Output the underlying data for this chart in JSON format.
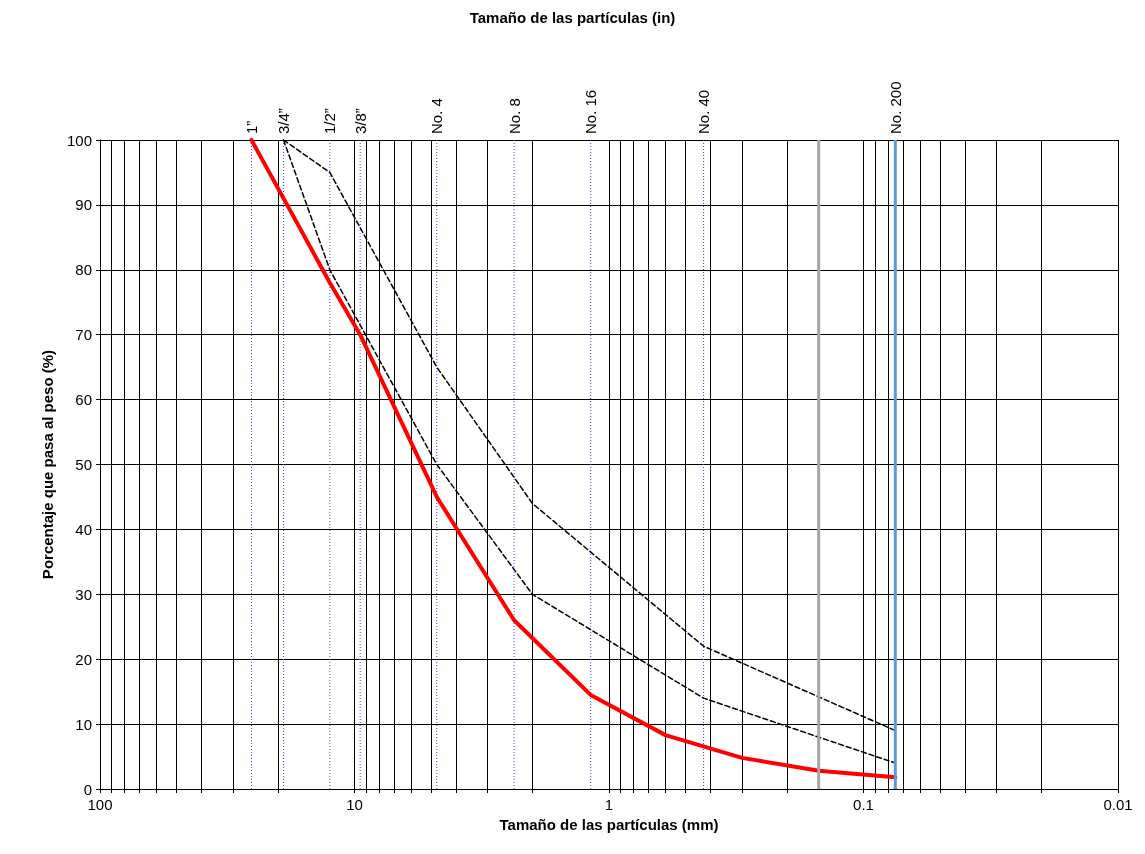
{
  "chart_data": {
    "type": "line",
    "xlabel": "Tamaño de las partículas (mm)",
    "ylabel": "Porcentaje que pasa al peso (%)",
    "title": "Tamaño de las partículas (in)",
    "log": "x",
    "xlim": [
      100,
      0.01
    ],
    "ylim": [
      0,
      100
    ],
    "xticks": [
      100,
      {
        "value": 90,
        "label": null
      },
      {
        "value": 80,
        "label": null
      },
      {
        "value": 70,
        "label": null
      },
      {
        "value": 60,
        "label": null
      },
      {
        "value": 50,
        "label": null
      },
      {
        "value": 40,
        "label": null
      },
      {
        "value": 30,
        "label": null
      },
      {
        "value": 20,
        "label": null
      },
      10,
      {
        "value": 9,
        "label": null
      },
      {
        "value": 8,
        "label": null
      },
      {
        "value": 7,
        "label": null
      },
      {
        "value": 6,
        "label": null
      },
      {
        "value": 5,
        "label": null
      },
      {
        "value": 4,
        "label": null
      },
      {
        "value": 3,
        "label": null
      },
      {
        "value": 2,
        "label": null
      },
      1,
      {
        "value": 0.9,
        "label": null
      },
      {
        "value": 0.8,
        "label": null
      },
      {
        "value": 0.7,
        "label": null
      },
      {
        "value": 0.6,
        "label": null
      },
      {
        "value": 0.5,
        "label": null
      },
      {
        "value": 0.4,
        "label": null
      },
      {
        "value": 0.3,
        "label": null
      },
      {
        "value": 0.2,
        "label": null
      },
      0.1,
      {
        "value": 0.09,
        "label": null
      },
      {
        "value": 0.08,
        "label": null
      },
      {
        "value": 0.07,
        "label": null
      },
      {
        "value": 0.06,
        "label": null
      },
      {
        "value": 0.05,
        "label": null
      },
      {
        "value": 0.04,
        "label": null
      },
      {
        "value": 0.03,
        "label": null
      },
      {
        "value": 0.02,
        "label": null
      },
      0.01
    ],
    "yticks": [
      0,
      10,
      20,
      30,
      40,
      50,
      60,
      70,
      80,
      90,
      100
    ],
    "grid": true,
    "marker": "none",
    "ref_lines": [
      {
        "axis": "x",
        "value": 25.4,
        "label": "1”",
        "color": "#4040ff",
        "line_style": "dotted"
      },
      {
        "axis": "x",
        "value": 19,
        "label": "3/4”",
        "color": "#4040ff",
        "line_style": "dotted"
      },
      {
        "axis": "x",
        "value": 12.5,
        "label": "1/2”",
        "color": "#4040ff",
        "line_style": "dotted"
      },
      {
        "axis": "x",
        "value": 9.5,
        "label": "3/8”",
        "color": "#4040ff",
        "line_style": "dotted"
      },
      {
        "axis": "x",
        "value": 4.75,
        "label": "No. 4",
        "color": "#4040ff",
        "line_style": "dotted"
      },
      {
        "axis": "x",
        "value": 2.36,
        "label": "No. 8",
        "color": "#4040ff",
        "line_style": "dotted"
      },
      {
        "axis": "x",
        "value": 1.18,
        "label": "No. 16",
        "color": "#4040ff",
        "line_style": "dotted"
      },
      {
        "axis": "x",
        "value": 0.425,
        "label": "No. 40",
        "color": "#4040ff",
        "line_style": "dotted"
      },
      {
        "axis": "x",
        "value": 0.15,
        "color": "#a6a6a6",
        "line_style": "solid"
      },
      {
        "axis": "x",
        "value": 0.075,
        "label": "No. 200",
        "color": "#5b9bd5",
        "line_style": "solid"
      }
    ],
    "series": [
      {
        "color": "#000000",
        "line_style": "dashed",
        "x": [
          19,
          12.5,
          4.75,
          2.0,
          0.425,
          0.075
        ],
        "values": [
          100,
          95,
          65,
          44,
          22,
          9
        ]
      },
      {
        "color": "#000000",
        "line_style": "dashed",
        "x": [
          19,
          12.5,
          4.75,
          2.0,
          0.425,
          0.075
        ],
        "values": [
          100,
          80,
          50,
          30,
          14,
          4
        ]
      },
      {
        "color": "#ff0000",
        "line_style": "solid",
        "x": [
          25.4,
          19,
          12.5,
          9.5,
          4.75,
          2.36,
          1.18,
          0.6,
          0.3,
          0.15,
          0.075
        ],
        "values": [
          100,
          91,
          78,
          70,
          45,
          26,
          14.5,
          8.3,
          4.8,
          2.8,
          1.8
        ]
      }
    ]
  }
}
